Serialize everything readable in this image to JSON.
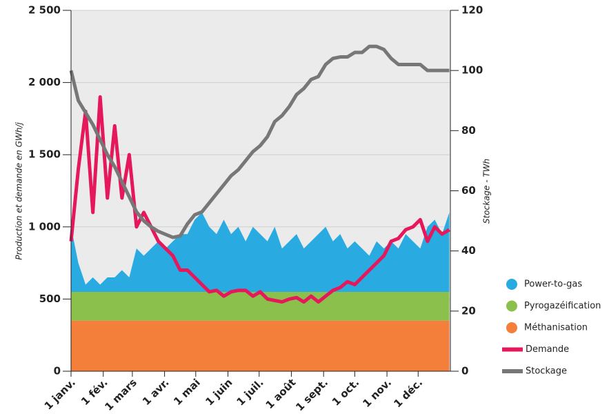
{
  "chart_data": {
    "type": "area",
    "ylabel": "Production et demande en GWh/j",
    "y2label": "Stockage - TWh",
    "x": [
      0,
      7,
      14,
      21,
      28,
      35,
      42,
      49,
      56,
      63,
      70,
      77,
      84,
      91,
      98,
      105,
      112,
      119,
      126,
      133,
      140,
      147,
      154,
      161,
      168,
      175,
      182,
      189,
      196,
      203,
      210,
      217,
      224,
      231,
      238,
      245,
      252,
      259,
      266,
      273,
      280,
      287,
      294,
      301,
      308,
      315,
      322,
      329,
      336,
      343,
      350,
      357,
      364
    ],
    "xlim": [
      0,
      365
    ],
    "xticks": [
      {
        "value": 0,
        "label": "1 janv."
      },
      {
        "value": 31,
        "label": "1 fév."
      },
      {
        "value": 59,
        "label": "1 mars"
      },
      {
        "value": 90,
        "label": "1 avr."
      },
      {
        "value": 120,
        "label": "1 mai"
      },
      {
        "value": 151,
        "label": "1 juin"
      },
      {
        "value": 181,
        "label": "1 juil."
      },
      {
        "value": 212,
        "label": "1 août"
      },
      {
        "value": 243,
        "label": "1 sept."
      },
      {
        "value": 273,
        "label": "1 oct."
      },
      {
        "value": 304,
        "label": "1 nov."
      },
      {
        "value": 334,
        "label": "1 déc."
      }
    ],
    "ylim": [
      0,
      2500
    ],
    "yticks": [
      0,
      500,
      {
        "value": 1000,
        "label": "1 000"
      },
      {
        "value": 1500,
        "label": "1 500"
      },
      {
        "value": 2000,
        "label": "2 000"
      },
      {
        "value": 2500,
        "label": "2 500"
      }
    ],
    "y2lim": [
      0,
      120
    ],
    "y2ticks": [
      0,
      20,
      40,
      60,
      80,
      100,
      120
    ],
    "grid": true,
    "legend": "right",
    "series": [
      {
        "name": "Power-to-gas",
        "color": "#29abe2",
        "kind": "area",
        "values": [
          450,
          200,
          50,
          100,
          50,
          100,
          100,
          150,
          100,
          300,
          250,
          300,
          350,
          300,
          350,
          400,
          400,
          500,
          550,
          450,
          400,
          500,
          400,
          450,
          350,
          450,
          400,
          350,
          450,
          300,
          350,
          400,
          300,
          350,
          400,
          450,
          350,
          400,
          300,
          350,
          300,
          250,
          350,
          300,
          350,
          300,
          400,
          350,
          300,
          450,
          500,
          400,
          550
        ]
      },
      {
        "name": "Pyrogazéification",
        "color": "#8cc04c",
        "kind": "area",
        "values": [
          200,
          200,
          200,
          200,
          200,
          200,
          200,
          200,
          200,
          200,
          200,
          200,
          200,
          200,
          200,
          200,
          200,
          200,
          200,
          200,
          200,
          200,
          200,
          200,
          200,
          200,
          200,
          200,
          200,
          200,
          200,
          200,
          200,
          200,
          200,
          200,
          200,
          200,
          200,
          200,
          200,
          200,
          200,
          200,
          200,
          200,
          200,
          200,
          200,
          200,
          200,
          200,
          200
        ]
      },
      {
        "name": "Méthanisation",
        "color": "#f47f3a",
        "kind": "area",
        "values": [
          350,
          350,
          350,
          350,
          350,
          350,
          350,
          350,
          350,
          350,
          350,
          350,
          350,
          350,
          350,
          350,
          350,
          350,
          350,
          350,
          350,
          350,
          350,
          350,
          350,
          350,
          350,
          350,
          350,
          350,
          350,
          350,
          350,
          350,
          350,
          350,
          350,
          350,
          350,
          350,
          350,
          350,
          350,
          350,
          350,
          350,
          350,
          350,
          350,
          350,
          350,
          350,
          350
        ]
      },
      {
        "name": "Demande",
        "color": "#e5185b",
        "kind": "line",
        "values": [
          900,
          1400,
          1800,
          1100,
          1900,
          1200,
          1700,
          1200,
          1500,
          1000,
          1100,
          1000,
          900,
          850,
          800,
          700,
          700,
          650,
          600,
          550,
          560,
          520,
          550,
          560,
          560,
          520,
          550,
          500,
          490,
          480,
          500,
          510,
          480,
          520,
          480,
          520,
          560,
          580,
          620,
          600,
          650,
          700,
          750,
          800,
          900,
          920,
          980,
          1000,
          1050,
          900,
          1000,
          950,
          980
        ]
      },
      {
        "name": "Stockage",
        "color": "#777777",
        "kind": "line",
        "axis": "y2",
        "values": [
          100,
          90,
          86,
          82,
          77,
          72,
          68,
          63,
          58,
          53,
          50,
          48,
          46.5,
          45.5,
          44.5,
          45,
          49,
          52,
          53,
          56,
          59,
          62,
          65,
          67,
          70,
          73,
          75,
          78,
          83,
          85,
          88,
          92,
          94,
          97,
          98,
          102,
          104,
          104.5,
          104.5,
          106,
          106,
          108,
          108,
          107,
          104,
          102,
          102,
          102,
          102,
          100,
          100,
          100,
          100
        ]
      }
    ]
  }
}
